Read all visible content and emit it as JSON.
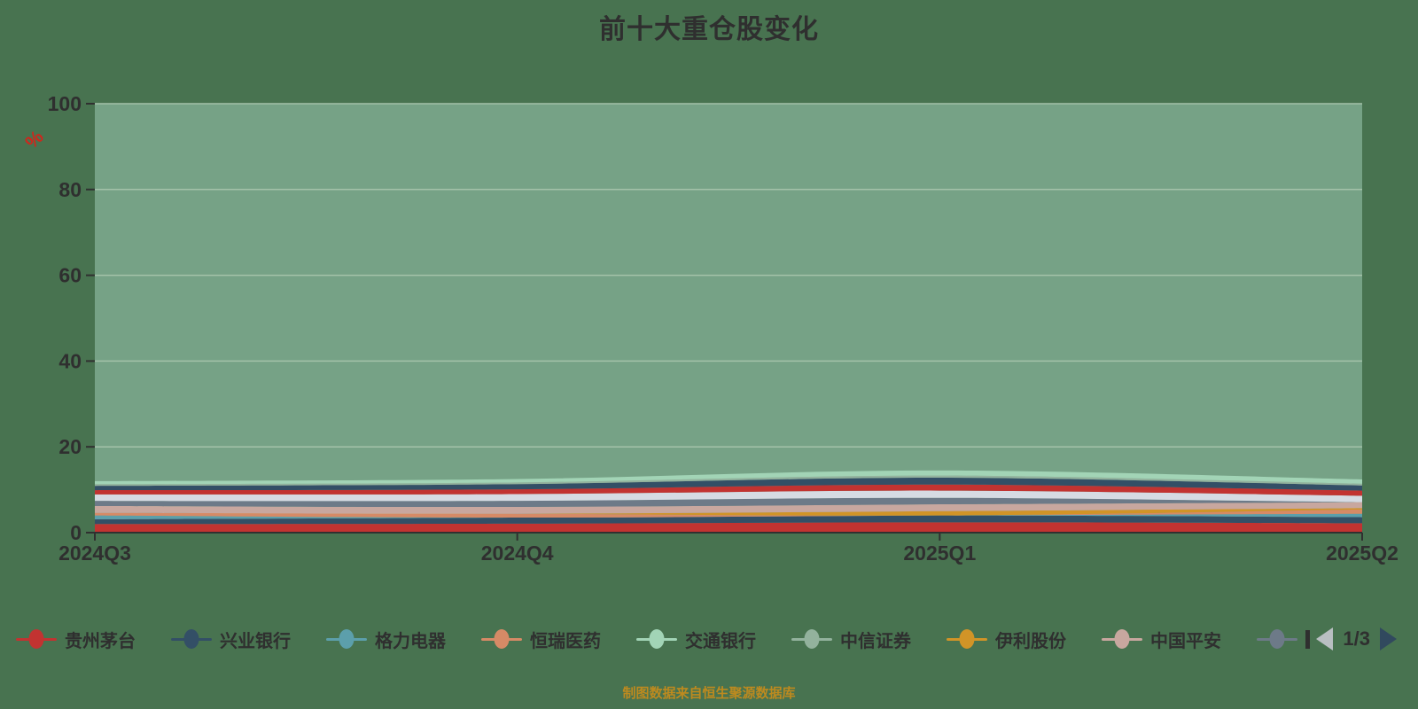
{
  "page": {
    "background": "#487350"
  },
  "title": {
    "text": "前十大重仓股变化",
    "color": "#2f2f2f"
  },
  "source_note": {
    "text": "制图数据来自恒生聚源数据库",
    "color": "#bd8a1f"
  },
  "legend": {
    "items": [
      {
        "label": "贵州茅台",
        "color": "#c23331",
        "clipped": false
      },
      {
        "label": "兴业银行",
        "color": "#334f66",
        "clipped": false
      },
      {
        "label": "格力电器",
        "color": "#5c9fab",
        "clipped": false
      },
      {
        "label": "恒瑞医药",
        "color": "#d68a66",
        "clipped": false
      },
      {
        "label": "交通银行",
        "color": "#a2d4b6",
        "clipped": false
      },
      {
        "label": "中信证券",
        "color": "#93b29d",
        "clipped": false
      },
      {
        "label": "伊利股份",
        "color": "#d19427",
        "clipped": false
      },
      {
        "label": "中国平安",
        "color": "#c8a79f",
        "clipped": false
      },
      {
        "label": "",
        "color": "#6d7a88",
        "clipped": true
      }
    ],
    "pager": {
      "text": "1/3",
      "prev_color": "#b9bfc2",
      "next_color": "#31495e"
    }
  },
  "chart_data": {
    "type": "area",
    "stacked": true,
    "title": "前十大重仓股变化",
    "categories": [
      "2024Q3",
      "2024Q4",
      "2025Q1",
      "2025Q2"
    ],
    "y_unit": "%",
    "ylim": [
      0,
      100
    ],
    "yticks": [
      0,
      20,
      40,
      60,
      80,
      100
    ],
    "grid": true,
    "legend_position": "bottom",
    "legend_pages": "1/3",
    "plot_bg": "#76a286",
    "grid_color": "#a4c2a9",
    "axis_color": "#303030",
    "label_color": "#2f2f2f",
    "unit_color": "#d0261c",
    "series": [
      {
        "name": "贵州茅台",
        "color": "#c23331",
        "values": [
          2.0,
          2.1,
          2.4,
          2.2
        ]
      },
      {
        "name": "兴业银行",
        "color": "#334f66",
        "values": [
          1.1,
          1.4,
          1.6,
          1.4
        ]
      },
      {
        "name": "格力电器",
        "color": "#5c9fab",
        "values": [
          0.9,
          0.0,
          0.0,
          0.8
        ]
      },
      {
        "name": "恒瑞医药",
        "color": "#d68a66",
        "values": [
          0.6,
          0.9,
          0.0,
          1.0
        ]
      },
      {
        "name": "伊利股份",
        "color": "#d19427",
        "values": [
          0.0,
          0.0,
          1.0,
          0.3
        ]
      },
      {
        "name": "中国平安",
        "color": "#c8a79f",
        "values": [
          1.6,
          1.6,
          1.6,
          1.4
        ]
      },
      {
        "name": "",
        "color": "#6d7a88",
        "values": [
          1.2,
          1.4,
          1.5,
          0.0
        ]
      },
      {
        "name": "",
        "color": "#d6dbe3",
        "values": [
          1.5,
          1.6,
          1.7,
          1.5
        ]
      },
      {
        "name": "",
        "color": "#c23331",
        "values": [
          1.0,
          1.1,
          1.4,
          1.2
        ]
      },
      {
        "name": "",
        "color": "#334f66",
        "values": [
          1.0,
          1.2,
          1.6,
          1.2
        ]
      },
      {
        "name": "中信证券",
        "color": "#93b29d",
        "values": [
          0.4,
          0.4,
          0.5,
          0.4
        ]
      },
      {
        "name": "交通银行",
        "color": "#a2d4b6",
        "values": [
          0.7,
          0.8,
          1.2,
          1.0
        ]
      }
    ]
  }
}
